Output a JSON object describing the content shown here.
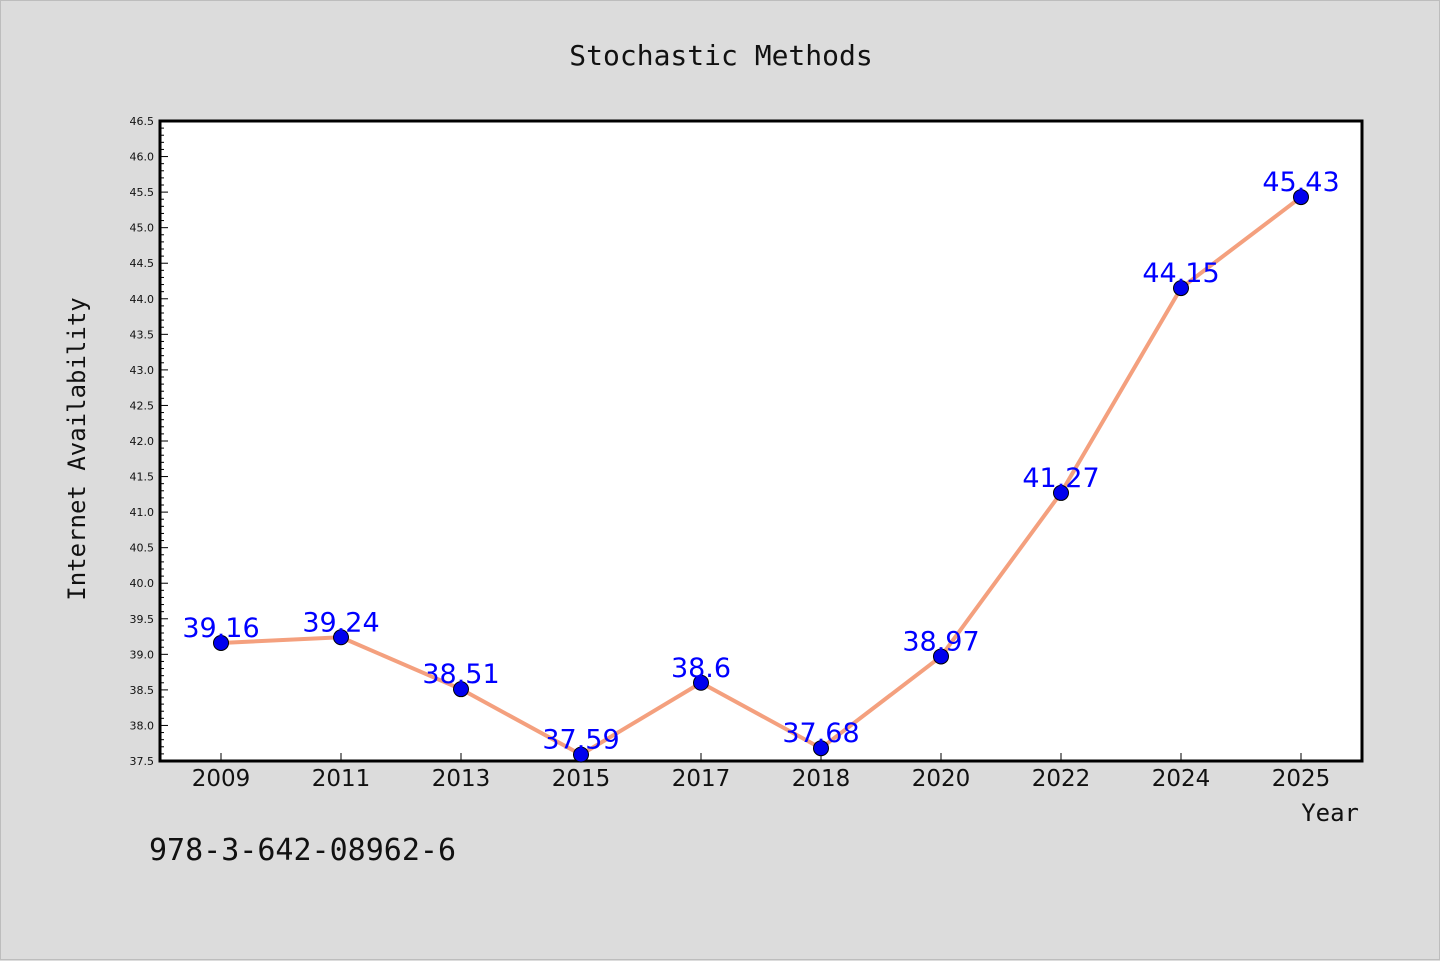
{
  "chart_data": {
    "type": "line",
    "title": "Stochastic Methods",
    "xlabel": "Year",
    "ylabel": "Internet Availability",
    "categories": [
      "2009",
      "2011",
      "2013",
      "2015",
      "2017",
      "2018",
      "2020",
      "2022",
      "2024",
      "2025"
    ],
    "series": [
      {
        "values": [
          39.16,
          39.24,
          38.51,
          37.59,
          38.6,
          37.68,
          38.97,
          41.27,
          44.15,
          45.43
        ],
        "data_labels": [
          "39.16",
          "39.24",
          "38.51",
          "37.59",
          "38.6",
          "37.68",
          "38.97",
          "41.27",
          "44.15",
          "45.43"
        ],
        "line_color": "#f4a07e",
        "marker_color": "#0000ee"
      }
    ],
    "ylim": [
      37.5,
      46.5
    ],
    "yticks": [
      "37.5",
      "38.0",
      "38.5",
      "39.0",
      "39.5",
      "40.0",
      "40.5",
      "41.0",
      "41.5",
      "42.0",
      "42.5",
      "43.0",
      "43.5",
      "44.0",
      "44.5",
      "45.0",
      "45.5",
      "46.0",
      "46.5"
    ],
    "grid": false,
    "legend": "none"
  },
  "annotation": "978-3-642-08962-6",
  "colors": {
    "background": "#dcdcdc",
    "plot_area": "#ffffff",
    "data_label": "#0000ff"
  }
}
